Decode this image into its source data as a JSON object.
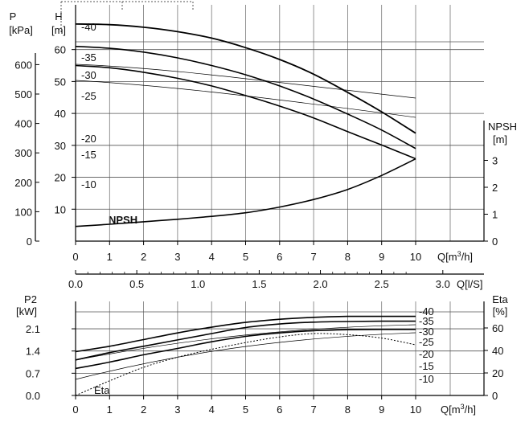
{
  "chart_data": [
    {
      "type": "line",
      "name": "head-curves",
      "x": [
        0,
        1,
        2,
        3,
        4,
        5,
        6,
        7,
        8,
        9,
        10
      ],
      "xlim": [
        0,
        10
      ],
      "xticks": [
        "0",
        "1",
        "2",
        "3",
        "4",
        "5",
        "6",
        "7",
        "8",
        "9",
        "10"
      ],
      "xlabel": "Q[m³/h]",
      "ylim": [
        0,
        72
      ],
      "left_axis_kpa": {
        "title": "P",
        "unit": "[kPa]",
        "ticks": [
          0,
          100,
          200,
          300,
          400,
          500,
          600
        ]
      },
      "left_axis_m": {
        "title": "H",
        "unit": "[m]",
        "ticks": [
          10,
          20,
          30,
          40,
          50,
          60
        ]
      },
      "right_axis": {
        "title": "NPSH",
        "unit": "[m]",
        "ticks": [
          0,
          1,
          2,
          3
        ]
      },
      "grid": true,
      "series": [
        {
          "values": [
            68.0,
            67.8,
            67.0,
            65.6,
            63.6,
            60.6,
            56.9,
            52.3,
            46.6,
            40.5,
            33.8
          ]
        },
        {
          "values": [
            61.0,
            60.4,
            59.2,
            57.4,
            55.0,
            52.1,
            48.6,
            44.5,
            39.8,
            34.8,
            29.0
          ]
        },
        {
          "values": [
            55.0,
            54.3,
            52.9,
            51.0,
            48.6,
            45.6,
            42.3,
            38.6,
            34.3,
            30.1,
            25.8
          ]
        },
        {
          "values": [
            4.1,
            4.7,
            5.4,
            6.1,
            6.9,
            7.9,
            9.5,
            11.6,
            14.4,
            18.3,
            22.9
          ],
          "name": "NPSH"
        }
      ],
      "speed_labels": [
        "-40",
        "-35",
        "-30",
        "-25",
        "-20",
        "-15",
        "-10"
      ],
      "secondary_x_axis": {
        "label": "Q[l/S]",
        "ticks": [
          "0.0",
          "0.5",
          "1.0",
          "1.5",
          "2.0",
          "2.5",
          "3.0"
        ],
        "range": [
          0,
          2.778
        ]
      }
    },
    {
      "type": "line",
      "name": "power-curves",
      "x": [
        0,
        1,
        2,
        3,
        4,
        5,
        6,
        7,
        8,
        9,
        10
      ],
      "xlim": [
        0,
        10
      ],
      "xticks": [
        "0",
        "1",
        "2",
        "3",
        "4",
        "5",
        "6",
        "7",
        "8",
        "9",
        "10"
      ],
      "xlabel": "Q[m³/h]",
      "left_axis": {
        "title": "P2",
        "unit": "[kW]",
        "ticks": [
          "0.0",
          "0.7",
          "1.4",
          "2.1"
        ],
        "ylim": [
          0,
          2.6
        ]
      },
      "right_axis": {
        "title": "Eta",
        "unit": "[%]",
        "ticks": [
          "0",
          "20",
          "40",
          "60"
        ],
        "ylim": [
          0,
          74
        ]
      },
      "grid": true,
      "series": [
        {
          "values": [
            1.38,
            1.55,
            1.76,
            1.97,
            2.15,
            2.3,
            2.4,
            2.46,
            2.49,
            2.49,
            2.49
          ]
        },
        {
          "values": [
            1.12,
            1.35,
            1.55,
            1.75,
            1.95,
            2.14,
            2.25,
            2.31,
            2.33,
            2.34,
            2.34
          ]
        },
        {
          "values": [
            0.85,
            1.05,
            1.28,
            1.48,
            1.69,
            1.86,
            1.97,
            2.04,
            2.07,
            2.08,
            2.08
          ]
        },
        {
          "values": [
            0,
            13,
            25,
            34,
            41,
            47,
            52,
            55,
            54,
            51,
            45
          ],
          "name": "Eta"
        }
      ],
      "speed_labels": [
        "-40",
        "-35",
        "-30",
        "-25",
        "-20",
        "-15",
        "-10"
      ]
    }
  ]
}
